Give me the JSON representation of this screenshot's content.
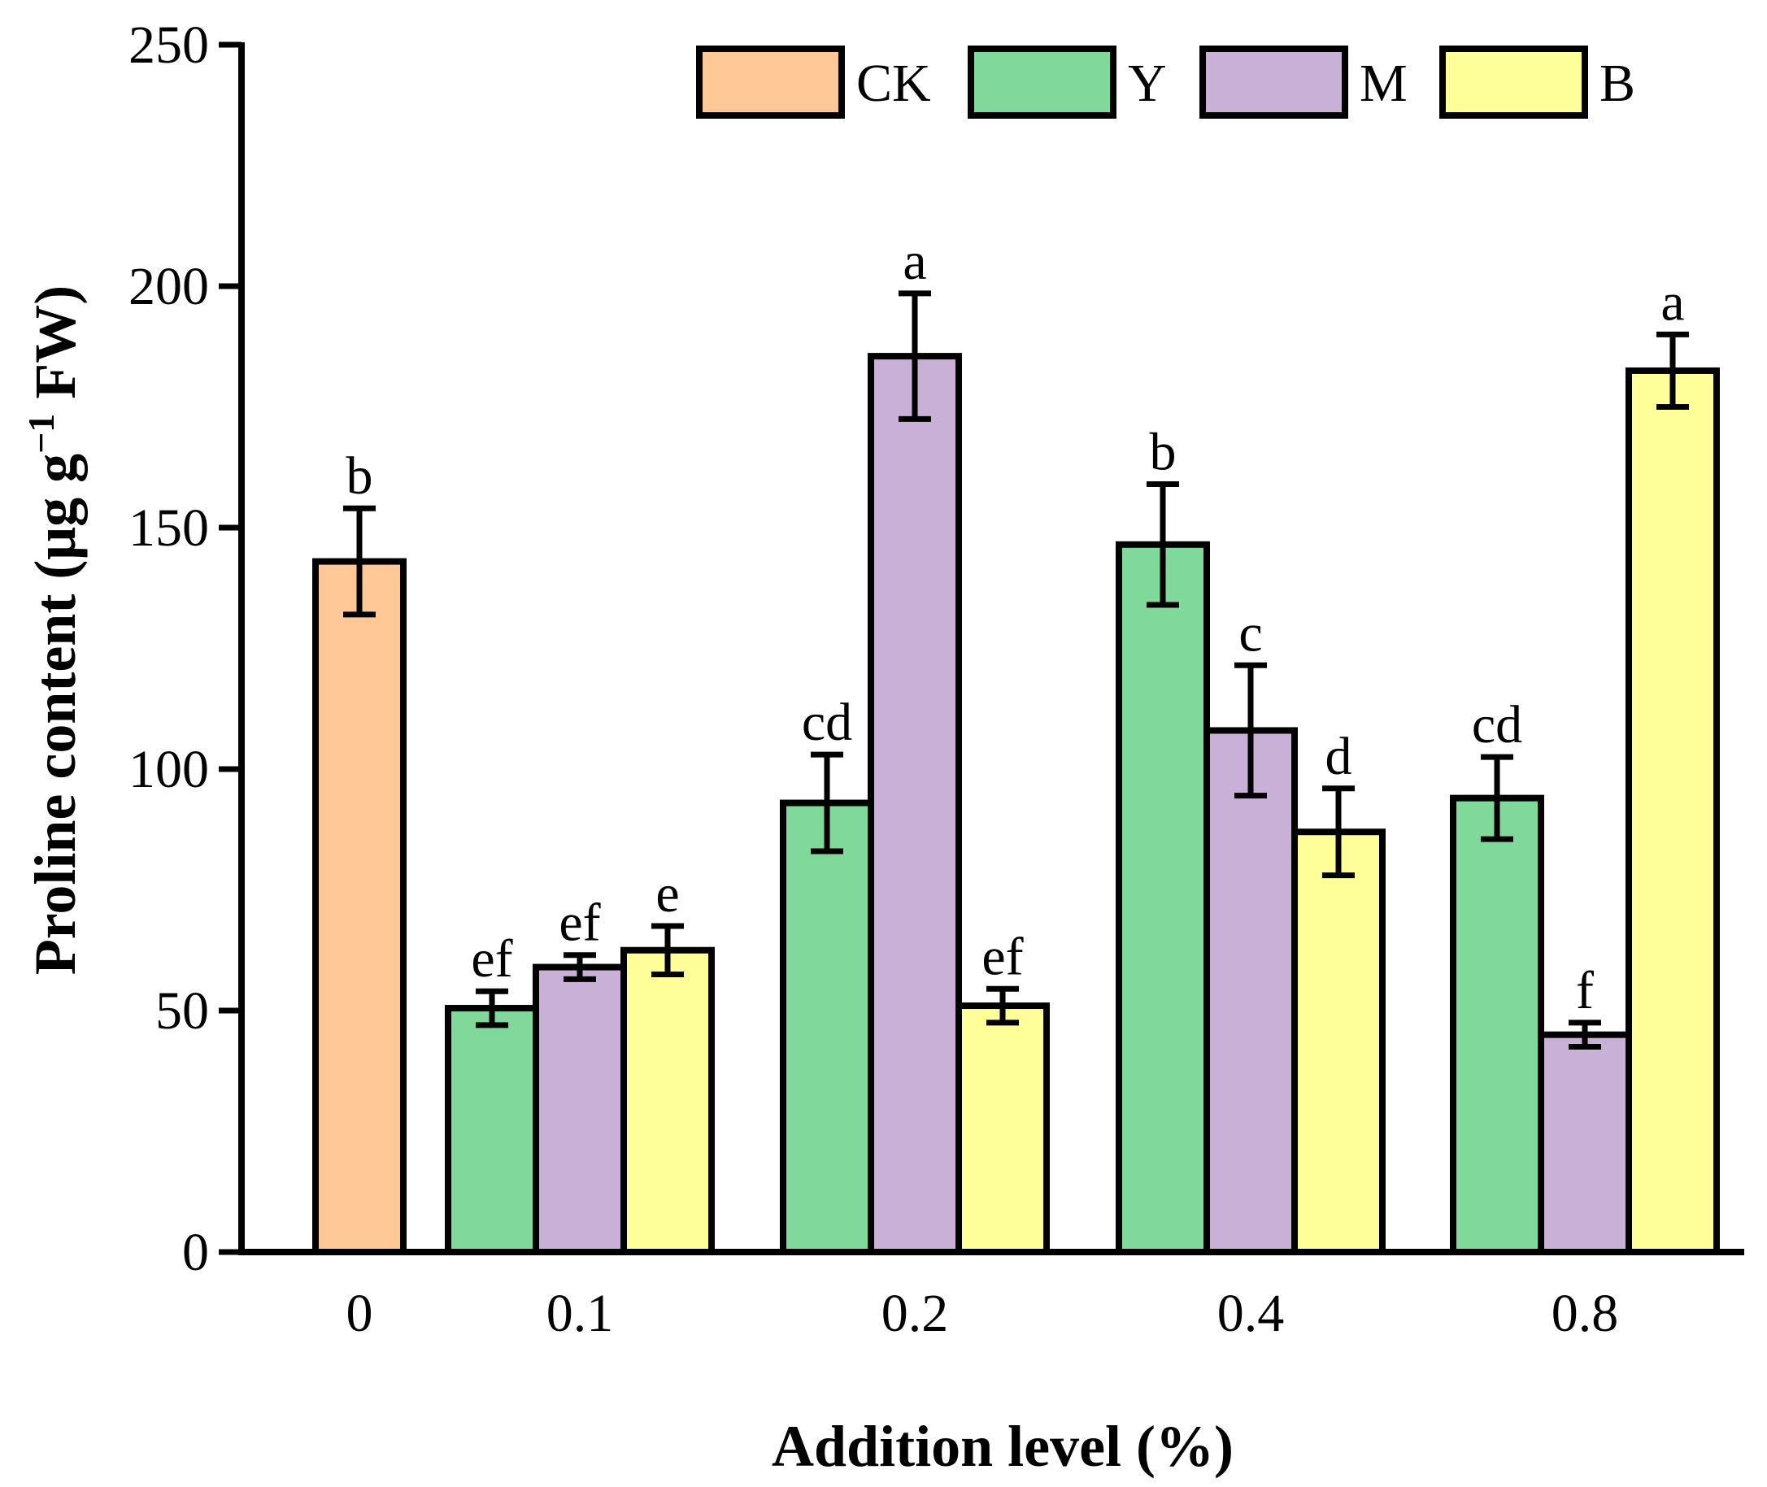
{
  "chart_data": {
    "type": "bar",
    "xlabel": "Addition level (%)",
    "ylabel_parts": {
      "pre": "Proline content (μg g",
      "sup": "−1",
      "post": " FW)"
    },
    "ylim": [
      0,
      250
    ],
    "yticks": [
      0,
      50,
      100,
      150,
      200,
      250
    ],
    "categories": [
      "0",
      "0.1",
      "0.2",
      "0.4",
      "0.8"
    ],
    "legend_position": "top-right",
    "series": [
      {
        "name": "CK",
        "color": "#FFC896",
        "values": [
          143,
          null,
          null,
          null,
          null
        ],
        "errors": [
          11,
          null,
          null,
          null,
          null
        ],
        "labels": [
          "b",
          null,
          null,
          null,
          null
        ]
      },
      {
        "name": "Y",
        "color": "#80D89A",
        "values": [
          null,
          50.5,
          93,
          146.5,
          94
        ],
        "errors": [
          null,
          3.5,
          10,
          12.5,
          8.5
        ],
        "labels": [
          null,
          "ef",
          "cd",
          "b",
          "cd"
        ]
      },
      {
        "name": "M",
        "color": "#C8B0D6",
        "values": [
          null,
          59,
          185.5,
          108,
          45
        ],
        "errors": [
          null,
          2.5,
          13,
          13.5,
          2.5
        ],
        "labels": [
          null,
          "ef",
          "a",
          "c",
          "f"
        ]
      },
      {
        "name": "B",
        "color": "#FFFF99",
        "values": [
          null,
          62.5,
          51,
          87,
          182.5
        ],
        "errors": [
          null,
          5,
          3.5,
          9,
          7.5
        ],
        "labels": [
          null,
          "e",
          "ef",
          "d",
          "a"
        ]
      }
    ]
  }
}
